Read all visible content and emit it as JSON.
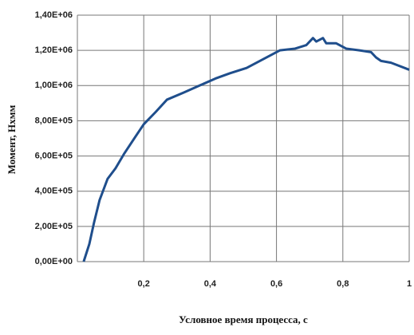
{
  "chart_data": {
    "type": "line",
    "x_label": "Условное время процесса, с",
    "y_label": "Момент, Нхмм",
    "color": "#1f4e8c",
    "grid": true,
    "xlim": [
      0,
      1
    ],
    "ylim": [
      0,
      1400000
    ],
    "xticks": [
      {
        "value": 0.2,
        "label": "0,2"
      },
      {
        "value": 0.4,
        "label": "0,4"
      },
      {
        "value": 0.6,
        "label": "0,6"
      },
      {
        "value": 0.8,
        "label": "0,8"
      },
      1
    ],
    "yticks": [
      {
        "value": 0,
        "label": "0,00E+00"
      },
      {
        "value": 200000,
        "label": "2,00E+05"
      },
      {
        "value": 400000,
        "label": "4,00E+05"
      },
      {
        "value": 600000,
        "label": "6,00E+05"
      },
      {
        "value": 800000,
        "label": "8,00E+05"
      },
      {
        "value": 1000000,
        "label": "1,00E+06"
      },
      {
        "value": 1200000,
        "label": "1,20E+06"
      },
      {
        "value": 1400000,
        "label": "1,40E+06"
      }
    ],
    "x": [
      0.019,
      0.036,
      0.05,
      0.067,
      0.091,
      0.115,
      0.14,
      0.175,
      0.2,
      0.236,
      0.27,
      0.32,
      0.368,
      0.416,
      0.46,
      0.51,
      0.56,
      0.61,
      0.656,
      0.69,
      0.71,
      0.72,
      0.74,
      0.75,
      0.78,
      0.81,
      0.85,
      0.885,
      0.9,
      0.915,
      0.945,
      1.0
    ],
    "values": [
      0,
      100000,
      220000,
      350000,
      470000,
      530000,
      610000,
      710000,
      780000,
      850000,
      920000,
      960000,
      1000000,
      1040000,
      1070000,
      1100000,
      1150000,
      1200000,
      1210000,
      1230000,
      1270000,
      1250000,
      1270000,
      1240000,
      1240000,
      1210000,
      1200000,
      1190000,
      1160000,
      1140000,
      1130000,
      1090000
    ]
  }
}
